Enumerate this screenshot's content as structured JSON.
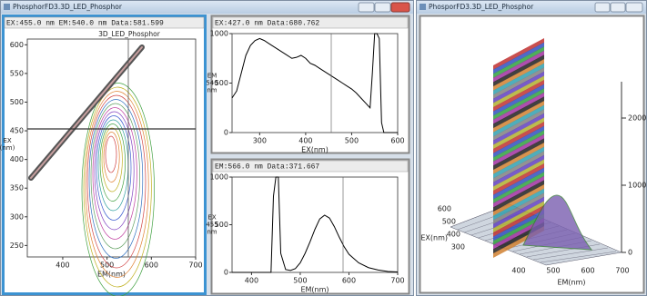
{
  "left_window": {
    "title": "PhosphorFD3.3D_LED_Phosphor",
    "contour": {
      "header": "EX:455.0 nm EM:540.0 nm Data:581.599",
      "title": "3D_LED_Phosphor",
      "xlabel": "EM(nm)",
      "ylabel": [
        "EX",
        "(nm)"
      ],
      "xlim": [
        320,
        700
      ],
      "xticks": [
        400,
        500,
        600,
        700
      ],
      "ylim": [
        230,
        610
      ],
      "yticks": [
        250,
        300,
        350,
        400,
        450,
        500,
        550,
        600
      ]
    },
    "excitation": {
      "type": "line",
      "header": "EX:427.0 nm Data:680.762",
      "xlabel": "EX(nm)",
      "ylabel": [
        "EM",
        "540",
        "nm"
      ],
      "xlim": [
        240,
        600
      ],
      "xticks": [
        300,
        400,
        500,
        600
      ],
      "ylim": [
        0,
        1000
      ],
      "yticks": [
        0,
        500,
        1000
      ],
      "color": "#000000",
      "x": [
        240,
        250,
        260,
        270,
        280,
        290,
        300,
        310,
        320,
        330,
        340,
        350,
        360,
        370,
        380,
        390,
        400,
        410,
        420,
        430,
        440,
        450,
        460,
        470,
        480,
        490,
        500,
        510,
        520,
        530,
        540,
        545,
        550,
        555,
        560,
        565,
        570,
        580,
        590,
        600
      ],
      "values": [
        350,
        420,
        600,
        780,
        880,
        930,
        950,
        930,
        900,
        870,
        840,
        810,
        780,
        750,
        760,
        780,
        750,
        700,
        680,
        650,
        620,
        590,
        560,
        530,
        500,
        470,
        440,
        400,
        350,
        300,
        250,
        600,
        1000,
        1000,
        950,
        100,
        0,
        0,
        0,
        0
      ]
    },
    "emission": {
      "type": "line",
      "header": "EM:566.0 nm Data:371.667",
      "xlabel": "EM(nm)",
      "ylabel": [
        "EX",
        "455",
        "nm"
      ],
      "xlim": [
        360,
        700
      ],
      "xticks": [
        400,
        500,
        600,
        700
      ],
      "ylim": [
        0,
        1000
      ],
      "yticks": [
        0,
        500,
        1000
      ],
      "color": "#000000",
      "x": [
        360,
        380,
        400,
        420,
        440,
        445,
        450,
        455,
        460,
        470,
        480,
        490,
        500,
        510,
        520,
        530,
        540,
        550,
        560,
        570,
        580,
        590,
        600,
        620,
        640,
        660,
        680,
        700
      ],
      "values": [
        0,
        0,
        0,
        0,
        0,
        800,
        1000,
        1000,
        200,
        30,
        20,
        40,
        100,
        200,
        320,
        450,
        560,
        600,
        570,
        480,
        370,
        270,
        190,
        100,
        50,
        25,
        10,
        5
      ]
    }
  },
  "right_window": {
    "title": "PhosporFD3.3D_LED_Phosphor",
    "zlim": [
      0,
      2000
    ],
    "zticks": [
      0,
      1000,
      2000
    ],
    "ex_label": "EX(nm)",
    "ex_ticks": [
      600,
      500,
      400,
      300
    ],
    "em_label": "EM(nm)",
    "em_ticks": [
      400,
      500,
      600,
      700
    ]
  }
}
